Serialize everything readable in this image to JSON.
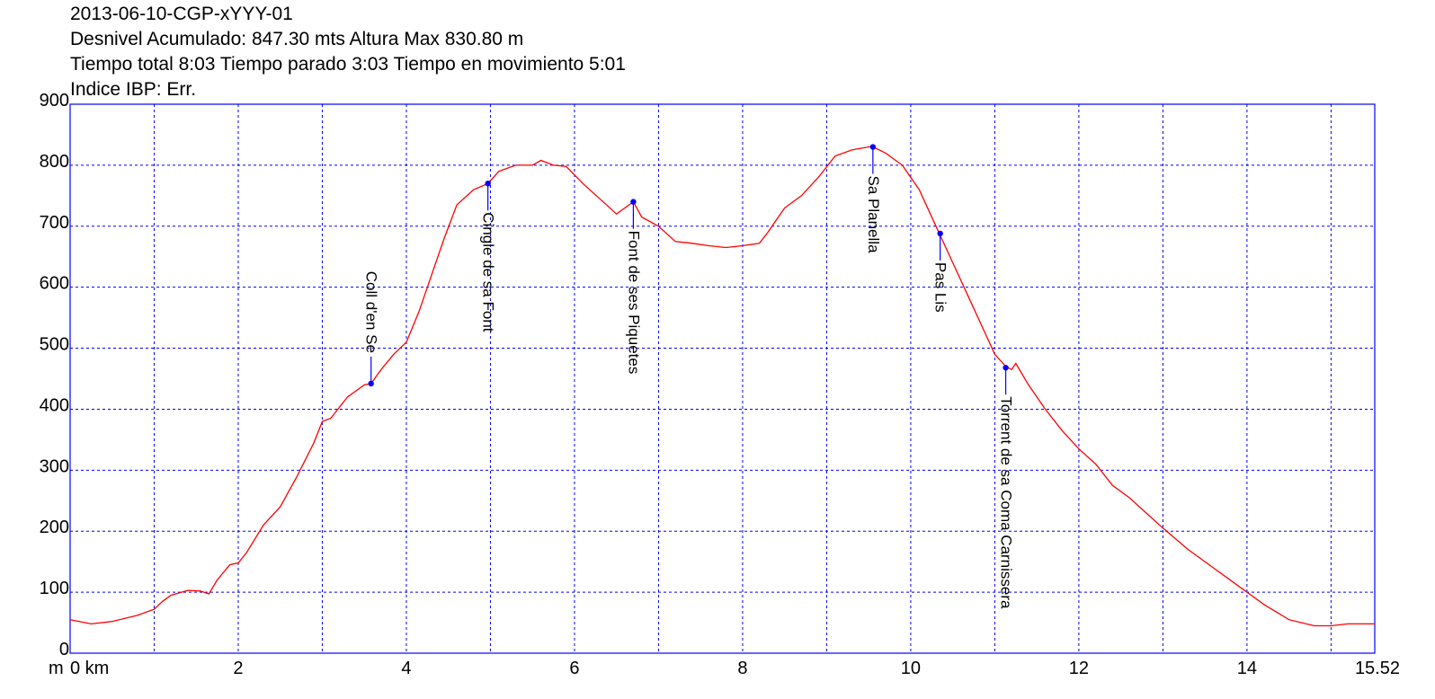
{
  "header": {
    "line1": "2013-06-10-CGP-xYYY-01",
    "line2": "Desnivel Acumulado: 847.30 mts  Altura Max 830.80 m",
    "line3": "Tiempo total 8:03 Tiempo parado 3:03 Tiempo en movimiento 5:01",
    "line4": "Indice IBP: Err."
  },
  "chart_data": {
    "type": "line",
    "xunit": "km",
    "yunit": "m",
    "xlim": [
      0,
      15.52
    ],
    "ylim": [
      0,
      900
    ],
    "x_ticks": [
      0,
      2,
      4,
      6,
      8,
      10,
      12,
      14,
      15.52
    ],
    "x_tick_labels": [
      "0 km",
      "2",
      "4",
      "6",
      "8",
      "10",
      "12",
      "14",
      "15.52"
    ],
    "y_ticks": [
      0,
      100,
      200,
      300,
      400,
      500,
      600,
      700,
      800,
      900
    ],
    "y_tick_labels": [
      "0",
      "100",
      "200",
      "300",
      "400",
      "500",
      "600",
      "700",
      "800",
      "900"
    ],
    "y_unit_label": "m",
    "grid": true,
    "line_color": "#ff0000",
    "grid_color": "#0000ff",
    "waypoint_color": "#0000ff",
    "series": [
      {
        "x": [
          0,
          0.25,
          0.5,
          0.8,
          1.0,
          1.1,
          1.2,
          1.4,
          1.55,
          1.65,
          1.75,
          1.9,
          2.0,
          2.1,
          2.3,
          2.5,
          2.7,
          2.9,
          3.0,
          3.1,
          3.3,
          3.5,
          3.58,
          3.7,
          3.85,
          4.0,
          4.15,
          4.3,
          4.45,
          4.6,
          4.8,
          4.97,
          5.1,
          5.3,
          5.5,
          5.6,
          5.75,
          5.9,
          6.1,
          6.3,
          6.5,
          6.6,
          6.7,
          6.8,
          7.0,
          7.2,
          7.4,
          7.6,
          7.8,
          8.0,
          8.2,
          8.3,
          8.4,
          8.5,
          8.7,
          8.9,
          9.1,
          9.3,
          9.5,
          9.55,
          9.7,
          9.9,
          10.1,
          10.3,
          10.5,
          10.7,
          10.9,
          11.0,
          11.13,
          11.2,
          11.25,
          11.4,
          11.6,
          11.8,
          12.0,
          12.2,
          12.4,
          12.6,
          12.8,
          13.0,
          13.3,
          13.6,
          13.9,
          14.2,
          14.5,
          14.8,
          15.0,
          15.2,
          15.52
        ],
        "y": [
          55,
          48,
          52,
          62,
          72,
          85,
          95,
          103,
          102,
          97,
          120,
          145,
          148,
          165,
          210,
          240,
          290,
          345,
          380,
          385,
          420,
          440,
          442,
          465,
          490,
          510,
          560,
          620,
          680,
          735,
          760,
          770,
          790,
          800,
          800,
          808,
          800,
          798,
          770,
          745,
          720,
          730,
          740,
          715,
          700,
          675,
          672,
          668,
          665,
          668,
          672,
          690,
          710,
          730,
          750,
          780,
          815,
          825,
          830,
          830,
          820,
          800,
          760,
          700,
          640,
          580,
          520,
          490,
          470,
          465,
          475,
          440,
          400,
          365,
          335,
          310,
          275,
          255,
          230,
          205,
          170,
          140,
          110,
          80,
          55,
          45,
          45,
          48,
          48
        ]
      }
    ],
    "waypoints": [
      {
        "name": "Coll d'en Se",
        "x": 3.58,
        "y": 442
      },
      {
        "name": "Cingle de sa Font",
        "x": 4.97,
        "y": 770
      },
      {
        "name": "Font de ses Piquetes",
        "x": 6.7,
        "y": 740
      },
      {
        "name": "Sa Planella",
        "x": 9.55,
        "y": 830
      },
      {
        "name": "Pas Lis",
        "x": 10.35,
        "y": 688
      },
      {
        "name": "Torrent de sa Coma Carnissera",
        "x": 11.13,
        "y": 468
      }
    ]
  }
}
